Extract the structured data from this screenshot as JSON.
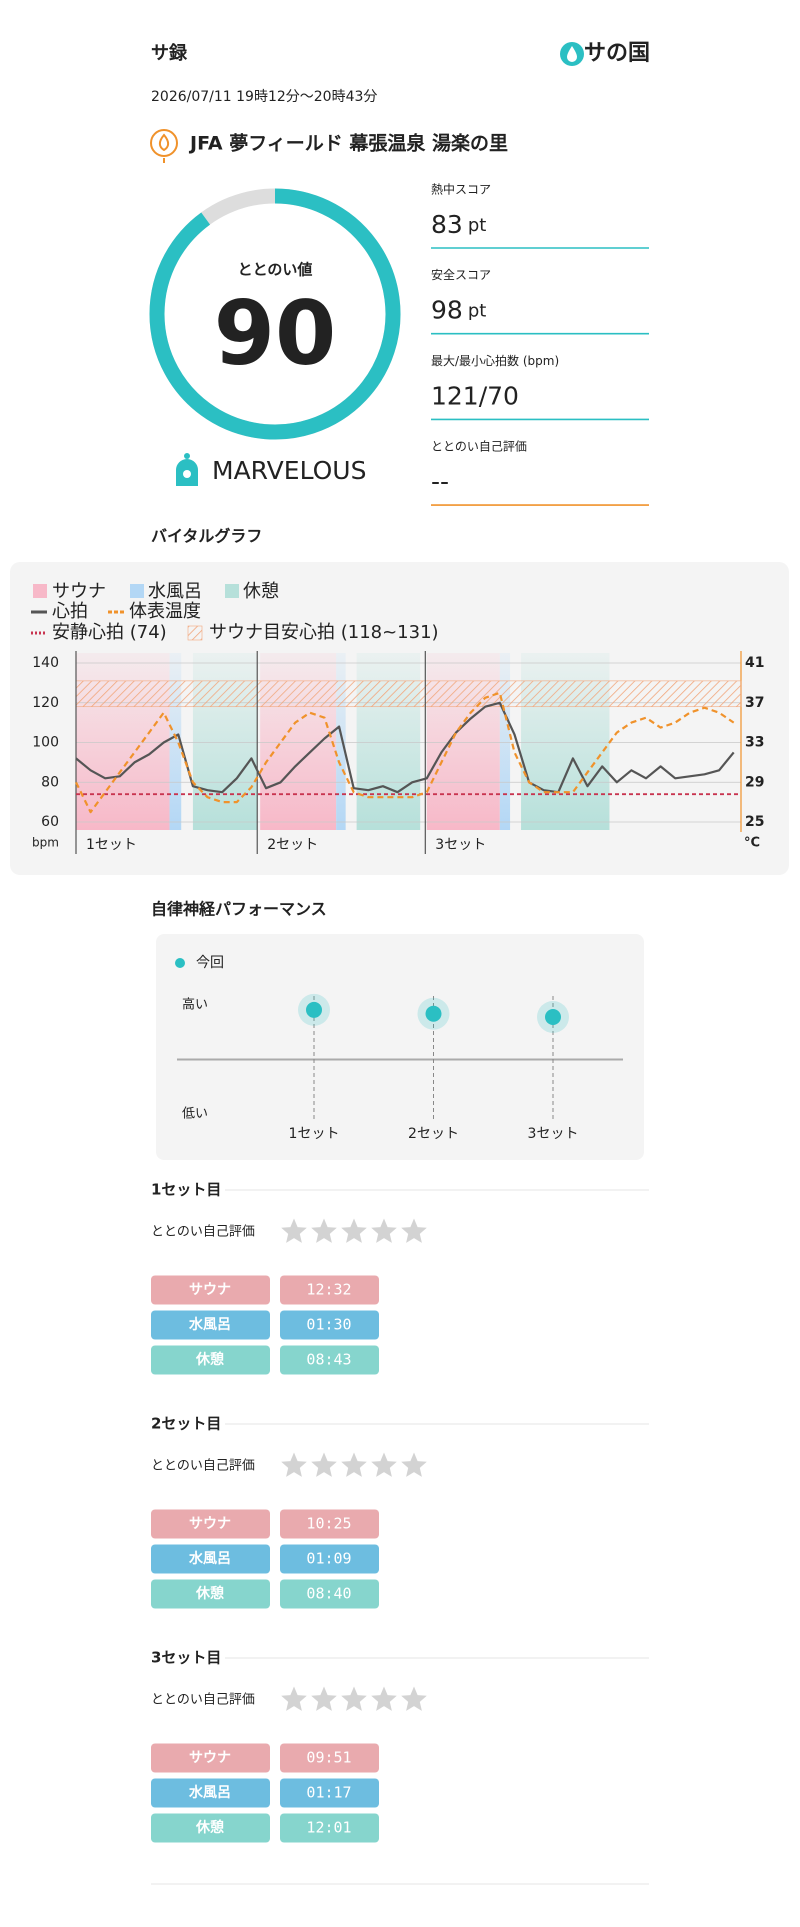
{
  "header": {
    "title": "サ録",
    "logo": "サの国",
    "datetime": "2026/07/11 19時12分～20時43分",
    "venue": "JFA 夢フィールド 幕張温泉 湯楽の里"
  },
  "score": {
    "label": "ととのい値",
    "value": 90,
    "max": 100,
    "rank": "MARVELOUS",
    "color": "#2bbfc3"
  },
  "metrics": [
    {
      "label": "熱中スコア",
      "value": 83,
      "unit": "pt"
    },
    {
      "label": "安全スコア",
      "value": 98,
      "unit": "pt"
    },
    {
      "label": "最大/最小心拍数 (bpm)",
      "value": "121/70"
    },
    {
      "label": "ととのい自己評価",
      "value": "--"
    }
  ],
  "sections": {
    "vital": "バイタルグラフ",
    "autonomic": "自律神経パフォーマンス"
  },
  "chart_data": [
    {
      "type": "line",
      "x": [
        0,
        2,
        4,
        6,
        8,
        10,
        12,
        14,
        16,
        18,
        20,
        22,
        24,
        26,
        28,
        30,
        32,
        34,
        36,
        38,
        40,
        42,
        44,
        46,
        48,
        50,
        52,
        54,
        56,
        58,
        60,
        62,
        64,
        66,
        68,
        70,
        72,
        74,
        76,
        78,
        80,
        82,
        84,
        86,
        88,
        90
      ],
      "xlim": [
        0,
        91
      ],
      "series": [
        {
          "name": "心拍",
          "color": "#555555",
          "values": [
            92,
            86,
            82,
            83,
            90,
            94,
            100,
            104,
            78,
            76,
            75,
            82,
            92,
            77,
            80,
            88,
            95,
            102,
            108,
            77,
            76,
            78,
            75,
            80,
            82,
            95,
            105,
            112,
            118,
            120,
            104,
            80,
            76,
            75,
            92,
            78,
            88,
            80,
            86,
            82,
            88,
            82,
            83,
            84,
            86,
            95
          ]
        },
        {
          "name": "体表温度",
          "color": "#f0922b",
          "axis": "y2",
          "values": [
            29,
            26,
            28,
            30,
            32,
            34,
            36,
            33,
            29,
            27.5,
            27,
            27,
            28.5,
            31,
            33,
            35,
            36,
            35.5,
            31,
            28,
            27.5,
            27.5,
            27.5,
            27.5,
            28,
            31,
            34,
            36,
            37.5,
            38,
            32,
            29,
            28,
            28,
            28,
            30,
            32,
            34,
            35,
            35.5,
            34.5,
            35,
            36,
            36.5,
            36,
            35
          ]
        }
      ],
      "bands": [
        {
          "name": "サウナ",
          "color": "#f7b8c8",
          "spans": [
            [
              0,
              12.8
            ],
            [
              25.2,
              35.6
            ],
            [
              48,
              58
            ]
          ]
        },
        {
          "name": "水風呂",
          "color": "#b3d7f5",
          "spans": [
            [
              12.8,
              14.4
            ],
            [
              35.6,
              36.9
            ],
            [
              58,
              59.4
            ]
          ]
        },
        {
          "name": "休憩",
          "color": "#b6e0da",
          "spans": [
            [
              16,
              24.8
            ],
            [
              38.4,
              47.1
            ],
            [
              60.9,
              73
            ]
          ]
        }
      ],
      "reference_lines": [
        {
          "name": "安静心拍 (74)",
          "value": 74,
          "color": "#c8344f"
        }
      ],
      "ranges": [
        {
          "name": "サウナ目安心拍 (118~131)",
          "values": [
            118,
            131
          ],
          "color": "#f2a77d"
        }
      ],
      "set_markers": [
        {
          "label": "1セット",
          "x": 0
        },
        {
          "label": "2セット",
          "x": 24.8
        },
        {
          "label": "3セット",
          "x": 47.8
        }
      ],
      "ylim": [
        60,
        140
      ],
      "yticks": [
        60,
        80,
        100,
        120,
        140
      ],
      "ylabel": "bpm",
      "y2lim": [
        25,
        41
      ],
      "y2ticks": [
        25,
        29,
        33,
        37,
        41
      ],
      "y2label": "°C",
      "y2color": "#f0922b",
      "grid": true
    },
    {
      "type": "dot",
      "categories": [
        "1セット",
        "2セット",
        "3セット"
      ],
      "series": [
        {
          "name": "今回",
          "color": "#2bbfc3",
          "values": [
            0.91,
            0.84,
            0.78
          ]
        }
      ],
      "ylim": [
        -1,
        1
      ],
      "yticks": [
        {
          "value": 1,
          "label": "高い"
        },
        {
          "value": -1,
          "label": "低い"
        }
      ]
    }
  ],
  "phase_colors": [
    "#e9aaae",
    "#6dbde0",
    "#86d5cd"
  ],
  "sets": [
    {
      "title": "1セット目",
      "rating_label": "ととのい自己評価",
      "rows": [
        {
          "label": "サウナ",
          "time": "12:32"
        },
        {
          "label": "水風呂",
          "time": "01:30"
        },
        {
          "label": "休憩",
          "time": "08:43"
        }
      ]
    },
    {
      "title": "2セット目",
      "rating_label": "ととのい自己評価",
      "rows": [
        {
          "label": "サウナ",
          "time": "10:25"
        },
        {
          "label": "水風呂",
          "time": "01:09"
        },
        {
          "label": "休憩",
          "time": "08:40"
        }
      ]
    },
    {
      "title": "3セット目",
      "rating_label": "ととのい自己評価",
      "rows": [
        {
          "label": "サウナ",
          "time": "09:51"
        },
        {
          "label": "水風呂",
          "time": "01:17"
        },
        {
          "label": "休憩",
          "time": "12:01"
        }
      ]
    }
  ]
}
